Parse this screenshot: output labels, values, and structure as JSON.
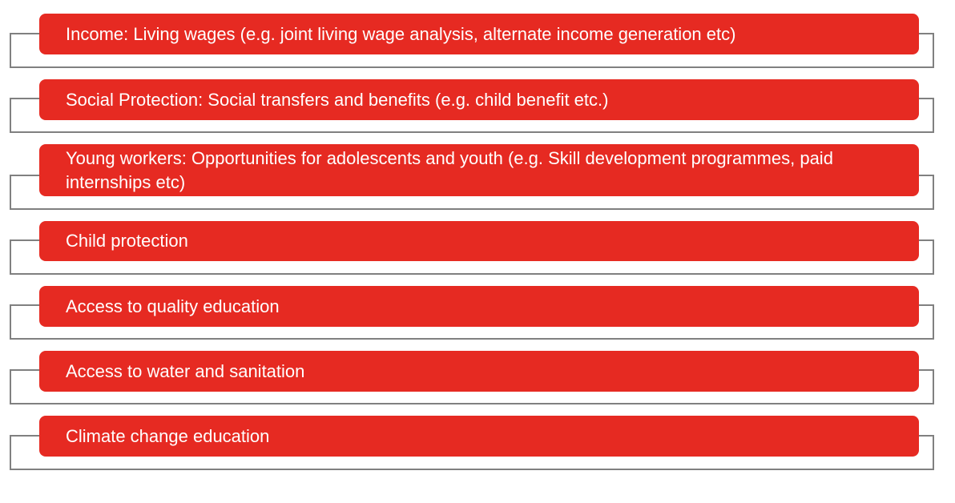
{
  "colors": {
    "box": "#e62a22",
    "frame": "#808080",
    "text": "#ffffff"
  },
  "items": [
    {
      "label": "Income: Living wages (e.g. joint living wage analysis, alternate income generation etc)"
    },
    {
      "label": "Social Protection: Social transfers and benefits (e.g. child benefit etc.)"
    },
    {
      "label": "Young workers: Opportunities for adolescents and youth (e.g. Skill development programmes, paid internships etc)"
    },
    {
      "label": "Child protection"
    },
    {
      "label": "Access to quality education"
    },
    {
      "label": "Access to water and sanitation"
    },
    {
      "label": "Climate change education"
    }
  ]
}
